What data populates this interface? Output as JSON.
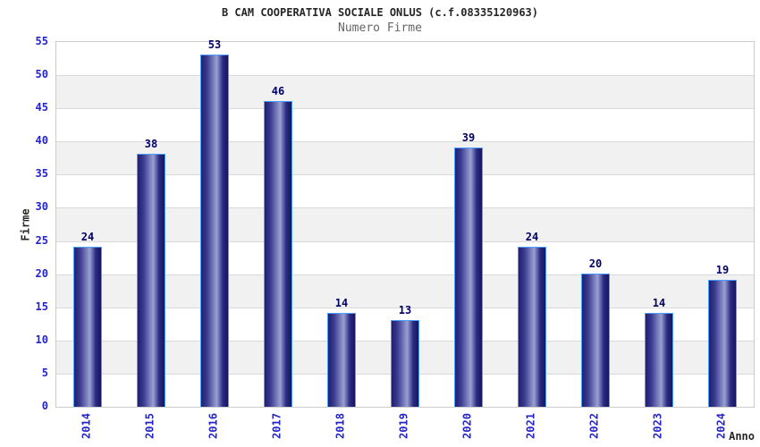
{
  "chart_data": {
    "type": "bar",
    "title": "B CAM COOPERATIVA SOCIALE ONLUS (c.f.08335120963)",
    "subtitle": "Numero Firme",
    "xlabel": "Anno",
    "ylabel": "Firme",
    "categories": [
      "2014",
      "2015",
      "2016",
      "2017",
      "2018",
      "2019",
      "2020",
      "2021",
      "2022",
      "2023",
      "2024"
    ],
    "values": [
      24,
      38,
      53,
      46,
      14,
      13,
      39,
      24,
      20,
      14,
      19
    ],
    "ylim": [
      0,
      55
    ],
    "ytick_step": 5,
    "yticks": [
      0,
      5,
      10,
      15,
      20,
      25,
      30,
      35,
      40,
      45,
      50,
      55
    ],
    "legend": "none",
    "grid": "horizontal gridlines with alternating white/gray bands",
    "colors": {
      "title": "#262626",
      "subtitle": "#666666",
      "axis_title": "#262626",
      "tick_label": "#2424cc",
      "value_label": "#000066",
      "bar_border": "#4d9fff",
      "bar_gradient": [
        "#202070",
        "#3b3b90",
        "#99a1d2",
        "#2c2c84",
        "#15155c"
      ],
      "band_white": "#ffffff",
      "band_gray": "#f1f1f1",
      "gridline": "#d9d9d9",
      "plot_border": "#cccccc"
    }
  }
}
